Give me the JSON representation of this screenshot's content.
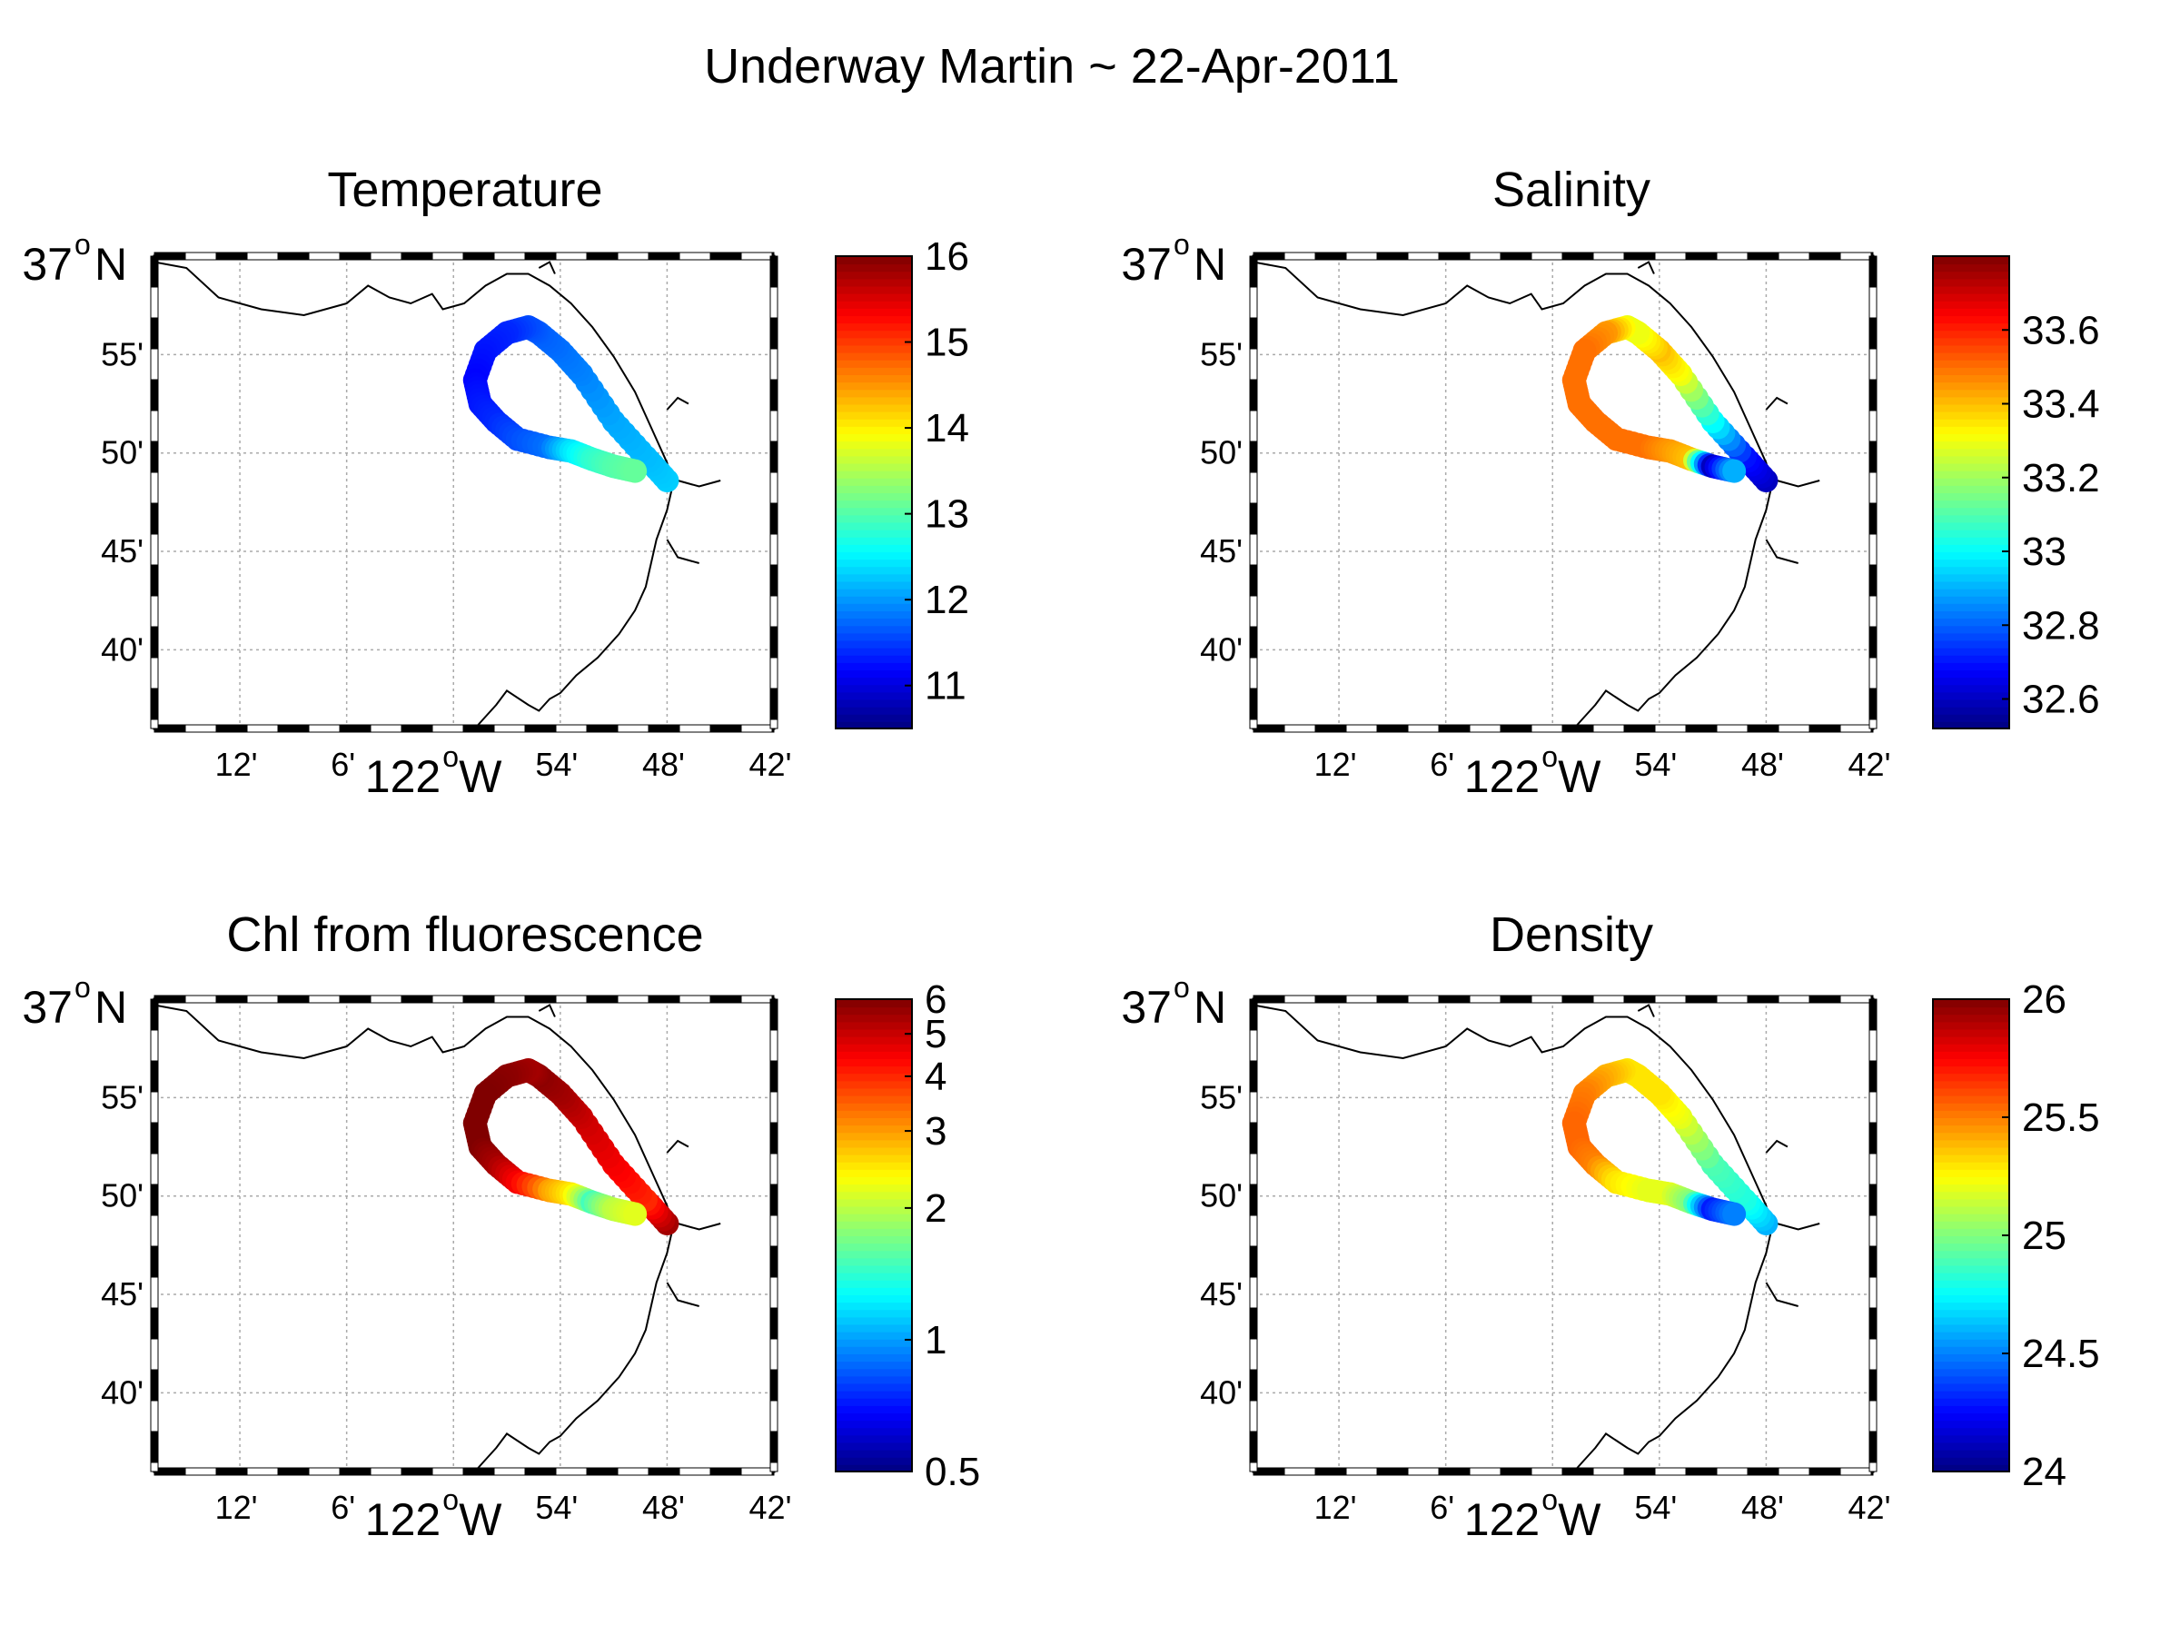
{
  "title": "Underway Martin ~ 22-Apr-2011",
  "map": {
    "lon_ticks": [
      "12'",
      "6'",
      "54'",
      "48'",
      "42'"
    ],
    "lat_ticks": [
      "55'",
      "50'",
      "45'",
      "40'"
    ],
    "lat_main": "37",
    "lat_main_suffix": "N",
    "lon_main": "122",
    "lon_main_suffix": "W",
    "degree_symbol": "o",
    "lon_range": [
      -122.28,
      -121.7
    ],
    "lat_range": [
      36.6,
      37.0
    ]
  },
  "chart_data": [
    {
      "type": "scatter",
      "title": "Temperature",
      "colorbar": {
        "min": 10.5,
        "max": 16,
        "ticks": [
          "16",
          "15",
          "14",
          "13",
          "12",
          "11"
        ],
        "tick_values": [
          16,
          15,
          14,
          13,
          12,
          11
        ],
        "scale": "linear"
      },
      "track": [
        {
          "lon": -121.8,
          "lat": 36.81,
          "v": 12.3
        },
        {
          "lon": -121.82,
          "lat": 36.83,
          "v": 12.2
        },
        {
          "lon": -121.85,
          "lat": 36.86,
          "v": 12.1
        },
        {
          "lon": -121.88,
          "lat": 36.9,
          "v": 11.9
        },
        {
          "lon": -121.9,
          "lat": 36.92,
          "v": 11.8
        },
        {
          "lon": -121.92,
          "lat": 36.935,
          "v": 11.7
        },
        {
          "lon": -121.93,
          "lat": 36.94,
          "v": 11.6
        },
        {
          "lon": -121.95,
          "lat": 36.935,
          "v": 11.4
        },
        {
          "lon": -121.97,
          "lat": 36.92,
          "v": 11.3
        },
        {
          "lon": -121.98,
          "lat": 36.895,
          "v": 11.2
        },
        {
          "lon": -121.975,
          "lat": 36.875,
          "v": 11.3
        },
        {
          "lon": -121.96,
          "lat": 36.86,
          "v": 11.4
        },
        {
          "lon": -121.94,
          "lat": 36.845,
          "v": 11.6
        },
        {
          "lon": -121.91,
          "lat": 36.838,
          "v": 11.8
        },
        {
          "lon": -121.89,
          "lat": 36.835,
          "v": 12.4
        },
        {
          "lon": -121.87,
          "lat": 36.828,
          "v": 12.8
        },
        {
          "lon": -121.85,
          "lat": 36.822,
          "v": 13.0
        },
        {
          "lon": -121.83,
          "lat": 36.818,
          "v": 13.1
        }
      ]
    },
    {
      "type": "scatter",
      "title": "Salinity",
      "colorbar": {
        "min": 32.52,
        "max": 33.8,
        "ticks": [
          "33.6",
          "33.4",
          "33.2",
          "33",
          "32.8",
          "32.6"
        ],
        "tick_values": [
          33.6,
          33.4,
          33.2,
          33.0,
          32.8,
          32.6
        ],
        "scale": "linear"
      },
      "track": [
        {
          "lon": -121.8,
          "lat": 36.81,
          "v": 32.6
        },
        {
          "lon": -121.82,
          "lat": 36.83,
          "v": 32.7
        },
        {
          "lon": -121.85,
          "lat": 36.86,
          "v": 33.0
        },
        {
          "lon": -121.88,
          "lat": 36.9,
          "v": 33.3
        },
        {
          "lon": -121.9,
          "lat": 36.92,
          "v": 33.4
        },
        {
          "lon": -121.92,
          "lat": 36.935,
          "v": 33.3
        },
        {
          "lon": -121.93,
          "lat": 36.94,
          "v": 33.3
        },
        {
          "lon": -121.95,
          "lat": 36.935,
          "v": 33.45
        },
        {
          "lon": -121.97,
          "lat": 36.92,
          "v": 33.5
        },
        {
          "lon": -121.98,
          "lat": 36.895,
          "v": 33.5
        },
        {
          "lon": -121.975,
          "lat": 36.875,
          "v": 33.5
        },
        {
          "lon": -121.96,
          "lat": 36.86,
          "v": 33.5
        },
        {
          "lon": -121.94,
          "lat": 36.845,
          "v": 33.5
        },
        {
          "lon": -121.91,
          "lat": 36.838,
          "v": 33.5
        },
        {
          "lon": -121.89,
          "lat": 36.835,
          "v": 33.45
        },
        {
          "lon": -121.87,
          "lat": 36.828,
          "v": 33.4
        },
        {
          "lon": -121.85,
          "lat": 36.822,
          "v": 32.6
        },
        {
          "lon": -121.83,
          "lat": 36.818,
          "v": 32.9
        }
      ]
    },
    {
      "type": "scatter",
      "title": "Chl from fluorescence",
      "colorbar": {
        "min": 0.5,
        "max": 6,
        "ticks": [
          "6",
          "5",
          "4",
          "3",
          "2",
          "1",
          "0.5"
        ],
        "tick_values": [
          6,
          5,
          4,
          3,
          2,
          1,
          0.5
        ],
        "scale": "log"
      },
      "track": [
        {
          "lon": -121.8,
          "lat": 36.81,
          "v": 5.5
        },
        {
          "lon": -121.82,
          "lat": 36.83,
          "v": 4.0
        },
        {
          "lon": -121.85,
          "lat": 36.86,
          "v": 4.5
        },
        {
          "lon": -121.88,
          "lat": 36.9,
          "v": 5.0
        },
        {
          "lon": -121.9,
          "lat": 36.92,
          "v": 5.5
        },
        {
          "lon": -121.92,
          "lat": 36.935,
          "v": 5.8
        },
        {
          "lon": -121.93,
          "lat": 36.94,
          "v": 5.5
        },
        {
          "lon": -121.95,
          "lat": 36.935,
          "v": 5.8
        },
        {
          "lon": -121.97,
          "lat": 36.92,
          "v": 6.0
        },
        {
          "lon": -121.98,
          "lat": 36.895,
          "v": 6.0
        },
        {
          "lon": -121.975,
          "lat": 36.875,
          "v": 6.0
        },
        {
          "lon": -121.96,
          "lat": 36.86,
          "v": 5.5
        },
        {
          "lon": -121.94,
          "lat": 36.845,
          "v": 4.5
        },
        {
          "lon": -121.91,
          "lat": 36.838,
          "v": 3.0
        },
        {
          "lon": -121.89,
          "lat": 36.835,
          "v": 2.5
        },
        {
          "lon": -121.87,
          "lat": 36.828,
          "v": 1.5
        },
        {
          "lon": -121.85,
          "lat": 36.822,
          "v": 2.0
        },
        {
          "lon": -121.83,
          "lat": 36.818,
          "v": 2.2
        }
      ]
    },
    {
      "type": "scatter",
      "title": "Density",
      "colorbar": {
        "min": 24,
        "max": 26,
        "ticks": [
          "26",
          "25.5",
          "25",
          "24.5",
          "24"
        ],
        "tick_values": [
          26,
          25.5,
          25,
          24.5,
          24
        ],
        "scale": "linear"
      },
      "track": [
        {
          "lon": -121.8,
          "lat": 36.81,
          "v": 24.6
        },
        {
          "lon": -121.82,
          "lat": 36.83,
          "v": 24.8
        },
        {
          "lon": -121.85,
          "lat": 36.86,
          "v": 24.9
        },
        {
          "lon": -121.88,
          "lat": 36.9,
          "v": 25.2
        },
        {
          "lon": -121.9,
          "lat": 36.92,
          "v": 25.3
        },
        {
          "lon": -121.92,
          "lat": 36.935,
          "v": 25.3
        },
        {
          "lon": -121.93,
          "lat": 36.94,
          "v": 25.3
        },
        {
          "lon": -121.95,
          "lat": 36.935,
          "v": 25.4
        },
        {
          "lon": -121.97,
          "lat": 36.92,
          "v": 25.5
        },
        {
          "lon": -121.98,
          "lat": 36.895,
          "v": 25.55
        },
        {
          "lon": -121.975,
          "lat": 36.875,
          "v": 25.55
        },
        {
          "lon": -121.96,
          "lat": 36.86,
          "v": 25.5
        },
        {
          "lon": -121.94,
          "lat": 36.845,
          "v": 25.3
        },
        {
          "lon": -121.91,
          "lat": 36.838,
          "v": 25.2
        },
        {
          "lon": -121.89,
          "lat": 36.835,
          "v": 25.2
        },
        {
          "lon": -121.87,
          "lat": 36.828,
          "v": 25.0
        },
        {
          "lon": -121.85,
          "lat": 36.822,
          "v": 24.3
        },
        {
          "lon": -121.83,
          "lat": 36.818,
          "v": 24.5
        }
      ]
    }
  ]
}
